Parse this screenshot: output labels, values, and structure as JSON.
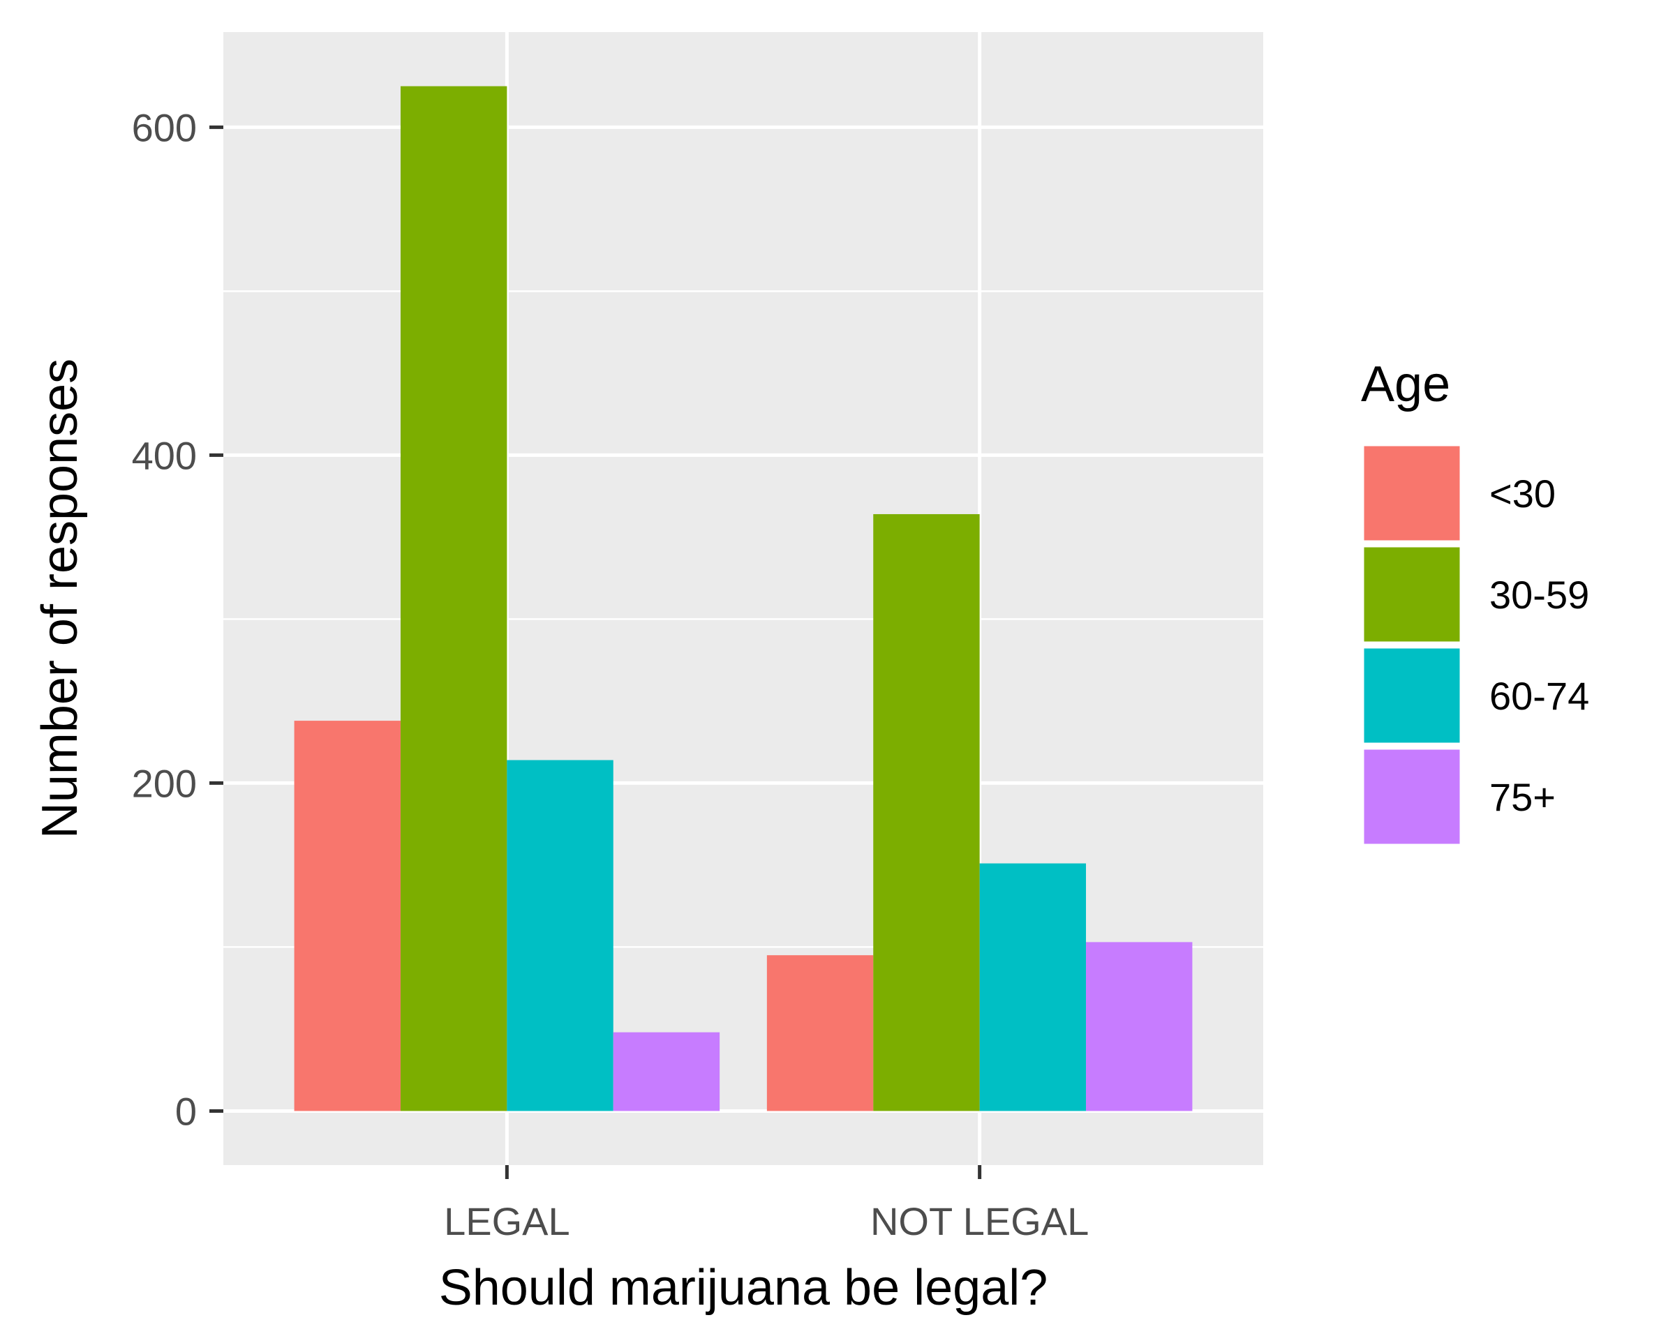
{
  "chart_data": {
    "type": "bar",
    "title": "",
    "xlabel": "Should marijuana be legal?",
    "ylabel": "Number of responses",
    "categories": [
      "LEGAL",
      "NOT LEGAL"
    ],
    "series": [
      {
        "name": "<30",
        "values": [
          238,
          95
        ],
        "color": "#F8766D"
      },
      {
        "name": "30-59",
        "values": [
          625,
          364
        ],
        "color": "#7CAE00"
      },
      {
        "name": "60-74",
        "values": [
          214,
          151
        ],
        "color": "#00BFC4"
      },
      {
        "name": "75+",
        "values": [
          48,
          103
        ],
        "color": "#C77CFF"
      }
    ],
    "ylim": [
      -33,
      658
    ],
    "yticks": [
      0,
      200,
      400,
      600
    ],
    "yticks_minor": [
      100,
      300,
      500
    ],
    "grid": true,
    "panel_background": "#EBEBEB",
    "gridline_color": "#FFFFFF",
    "legend": {
      "title": "Age",
      "position": "right",
      "entries": [
        "<30",
        "30-59",
        "60-74",
        "75+"
      ]
    }
  }
}
